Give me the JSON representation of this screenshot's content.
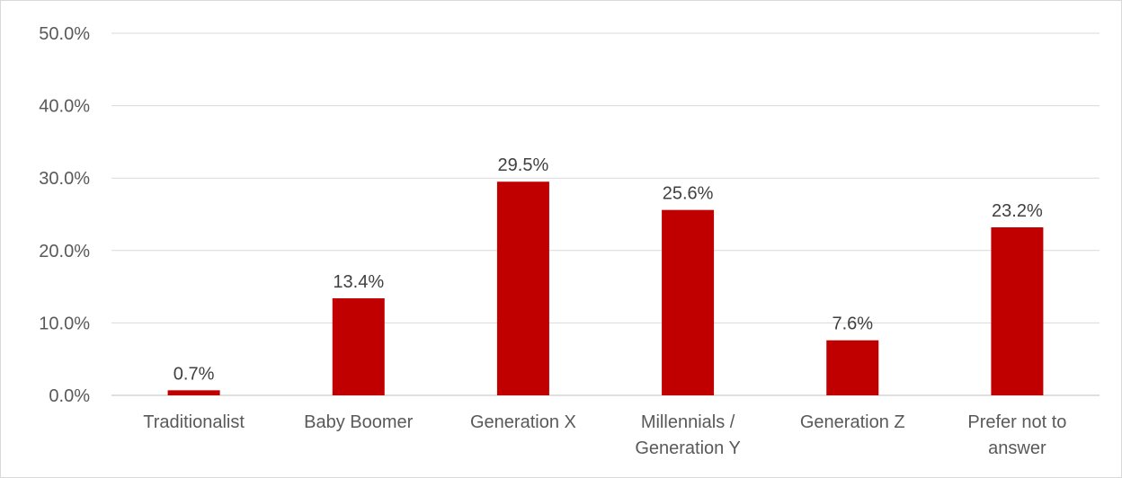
{
  "chart_data": {
    "type": "bar",
    "categories": [
      [
        "Traditionalist"
      ],
      [
        "Baby Boomer"
      ],
      [
        "Generation X"
      ],
      [
        "Millennials  /",
        "Generation Y"
      ],
      [
        "Generation Z"
      ],
      [
        "Prefer not to",
        "answer"
      ]
    ],
    "values": [
      0.7,
      13.4,
      29.5,
      25.6,
      7.6,
      23.2
    ],
    "data_labels": [
      "0.7%",
      "13.4%",
      "29.5%",
      "25.6%",
      "7.6%",
      "23.2%"
    ],
    "y_ticks": [
      "0.0%",
      "10.0%",
      "20.0%",
      "30.0%",
      "40.0%",
      "50.0%"
    ],
    "ylim": [
      0,
      50
    ],
    "title": "",
    "xlabel": "",
    "ylabel": "",
    "grid": true,
    "bar_color": "#c00000"
  }
}
